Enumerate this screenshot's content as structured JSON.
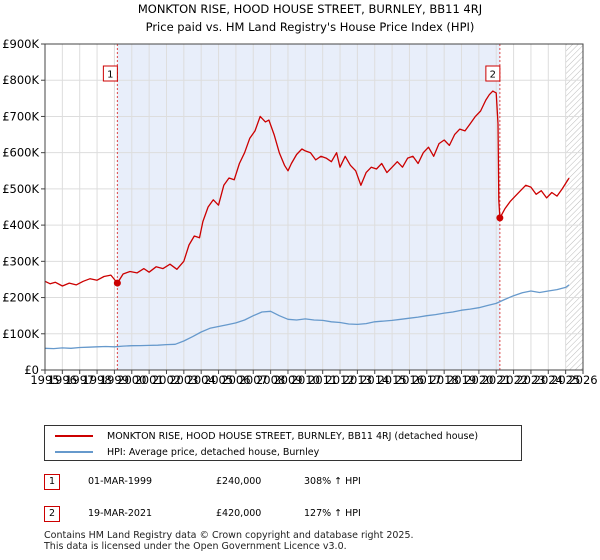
{
  "chart_data": {
    "type": "line",
    "title": "MONKTON RISE, HOOD HOUSE STREET, BURNLEY, BB11 4RJ",
    "subtitle": "Price paid vs. HM Land Registry's House Price Index (HPI)",
    "xlim": [
      1995,
      2026
    ],
    "ylim": [
      0,
      900000
    ],
    "x_ticks": [
      "1995",
      "1996",
      "1997",
      "1998",
      "1999",
      "2000",
      "2001",
      "2002",
      "2003",
      "2004",
      "2005",
      "2006",
      "2007",
      "2008",
      "2009",
      "2010",
      "2011",
      "2012",
      "2013",
      "2014",
      "2015",
      "2016",
      "2017",
      "2018",
      "2019",
      "2020",
      "2021",
      "2022",
      "2023",
      "2024",
      "2025",
      "2026"
    ],
    "y_ticks": [
      {
        "value": 0,
        "label": "£0"
      },
      {
        "value": 100000,
        "label": "£100K"
      },
      {
        "value": 200000,
        "label": "£200K"
      },
      {
        "value": 300000,
        "label": "£300K"
      },
      {
        "value": 400000,
        "label": "£400K"
      },
      {
        "value": 500000,
        "label": "£500K"
      },
      {
        "value": 600000,
        "label": "£600K"
      },
      {
        "value": 700000,
        "label": "£700K"
      },
      {
        "value": 800000,
        "label": "£800K"
      },
      {
        "value": 900000,
        "label": "£900K"
      }
    ],
    "shaded_span": [
      1999.17,
      2021.21
    ],
    "forecast_from": 2025.0,
    "series": [
      {
        "name": "MONKTON RISE, HOOD HOUSE STREET, BURNLEY, BB11 4RJ (detached house)",
        "color": "#cc0000",
        "points": [
          [
            1995.0,
            245000
          ],
          [
            1995.3,
            238000
          ],
          [
            1995.6,
            242000
          ],
          [
            1996.0,
            232000
          ],
          [
            1996.4,
            240000
          ],
          [
            1996.8,
            235000
          ],
          [
            1997.2,
            245000
          ],
          [
            1997.6,
            252000
          ],
          [
            1998.0,
            248000
          ],
          [
            1998.4,
            258000
          ],
          [
            1998.8,
            262000
          ],
          [
            1999.17,
            240000
          ],
          [
            1999.5,
            265000
          ],
          [
            1999.9,
            272000
          ],
          [
            2000.3,
            268000
          ],
          [
            2000.7,
            280000
          ],
          [
            2001.0,
            270000
          ],
          [
            2001.4,
            285000
          ],
          [
            2001.8,
            280000
          ],
          [
            2002.2,
            292000
          ],
          [
            2002.6,
            278000
          ],
          [
            2003.0,
            300000
          ],
          [
            2003.3,
            345000
          ],
          [
            2003.6,
            370000
          ],
          [
            2003.9,
            365000
          ],
          [
            2004.1,
            410000
          ],
          [
            2004.4,
            450000
          ],
          [
            2004.7,
            470000
          ],
          [
            2005.0,
            455000
          ],
          [
            2005.3,
            510000
          ],
          [
            2005.6,
            530000
          ],
          [
            2005.9,
            525000
          ],
          [
            2006.2,
            570000
          ],
          [
            2006.5,
            600000
          ],
          [
            2006.8,
            640000
          ],
          [
            2007.1,
            660000
          ],
          [
            2007.4,
            700000
          ],
          [
            2007.7,
            685000
          ],
          [
            2007.9,
            690000
          ],
          [
            2008.2,
            650000
          ],
          [
            2008.5,
            600000
          ],
          [
            2008.8,
            565000
          ],
          [
            2009.0,
            550000
          ],
          [
            2009.2,
            570000
          ],
          [
            2009.5,
            595000
          ],
          [
            2009.8,
            610000
          ],
          [
            2010.0,
            605000
          ],
          [
            2010.3,
            600000
          ],
          [
            2010.6,
            580000
          ],
          [
            2010.9,
            590000
          ],
          [
            2011.2,
            585000
          ],
          [
            2011.5,
            575000
          ],
          [
            2011.8,
            600000
          ],
          [
            2012.0,
            560000
          ],
          [
            2012.3,
            590000
          ],
          [
            2012.6,
            565000
          ],
          [
            2012.9,
            550000
          ],
          [
            2013.2,
            510000
          ],
          [
            2013.5,
            545000
          ],
          [
            2013.8,
            560000
          ],
          [
            2014.1,
            555000
          ],
          [
            2014.4,
            570000
          ],
          [
            2014.7,
            545000
          ],
          [
            2015.0,
            560000
          ],
          [
            2015.3,
            575000
          ],
          [
            2015.6,
            560000
          ],
          [
            2015.9,
            585000
          ],
          [
            2016.2,
            590000
          ],
          [
            2016.5,
            570000
          ],
          [
            2016.8,
            600000
          ],
          [
            2017.1,
            615000
          ],
          [
            2017.4,
            590000
          ],
          [
            2017.7,
            625000
          ],
          [
            2018.0,
            635000
          ],
          [
            2018.3,
            620000
          ],
          [
            2018.6,
            650000
          ],
          [
            2018.9,
            665000
          ],
          [
            2019.2,
            660000
          ],
          [
            2019.5,
            680000
          ],
          [
            2019.8,
            700000
          ],
          [
            2020.1,
            715000
          ],
          [
            2020.4,
            745000
          ],
          [
            2020.6,
            760000
          ],
          [
            2020.8,
            770000
          ],
          [
            2021.0,
            765000
          ],
          [
            2021.1,
            680000
          ],
          [
            2021.15,
            470000
          ],
          [
            2021.21,
            420000
          ],
          [
            2021.5,
            445000
          ],
          [
            2021.8,
            465000
          ],
          [
            2022.1,
            480000
          ],
          [
            2022.4,
            495000
          ],
          [
            2022.7,
            510000
          ],
          [
            2023.0,
            505000
          ],
          [
            2023.3,
            485000
          ],
          [
            2023.6,
            495000
          ],
          [
            2023.9,
            475000
          ],
          [
            2024.2,
            490000
          ],
          [
            2024.5,
            480000
          ],
          [
            2024.8,
            500000
          ],
          [
            2025.0,
            515000
          ],
          [
            2025.2,
            530000
          ]
        ]
      },
      {
        "name": "HPI: Average price, detached house, Burnley",
        "color": "#6699cc",
        "points": [
          [
            1995.0,
            60000
          ],
          [
            1995.5,
            59000
          ],
          [
            1996.0,
            61000
          ],
          [
            1996.5,
            60000
          ],
          [
            1997.0,
            62000
          ],
          [
            1997.5,
            63000
          ],
          [
            1998.0,
            64000
          ],
          [
            1998.5,
            65000
          ],
          [
            1999.0,
            64000
          ],
          [
            1999.5,
            66000
          ],
          [
            2000.0,
            67000
          ],
          [
            2000.5,
            67500
          ],
          [
            2001.0,
            68000
          ],
          [
            2001.5,
            68500
          ],
          [
            2002.0,
            70000
          ],
          [
            2002.5,
            71000
          ],
          [
            2003.0,
            80000
          ],
          [
            2003.5,
            92000
          ],
          [
            2004.0,
            105000
          ],
          [
            2004.5,
            115000
          ],
          [
            2005.0,
            120000
          ],
          [
            2005.5,
            125000
          ],
          [
            2006.0,
            130000
          ],
          [
            2006.5,
            138000
          ],
          [
            2007.0,
            150000
          ],
          [
            2007.5,
            160000
          ],
          [
            2008.0,
            162000
          ],
          [
            2008.5,
            150000
          ],
          [
            2009.0,
            140000
          ],
          [
            2009.5,
            138000
          ],
          [
            2010.0,
            141000
          ],
          [
            2010.5,
            138000
          ],
          [
            2011.0,
            137000
          ],
          [
            2011.5,
            133000
          ],
          [
            2012.0,
            131000
          ],
          [
            2012.5,
            127000
          ],
          [
            2013.0,
            126000
          ],
          [
            2013.5,
            128000
          ],
          [
            2014.0,
            133000
          ],
          [
            2014.5,
            135000
          ],
          [
            2015.0,
            137000
          ],
          [
            2015.5,
            140000
          ],
          [
            2016.0,
            143000
          ],
          [
            2016.5,
            146000
          ],
          [
            2017.0,
            150000
          ],
          [
            2017.5,
            153000
          ],
          [
            2018.0,
            157000
          ],
          [
            2018.5,
            160000
          ],
          [
            2019.0,
            165000
          ],
          [
            2019.5,
            168000
          ],
          [
            2020.0,
            172000
          ],
          [
            2020.5,
            178000
          ],
          [
            2021.0,
            184000
          ],
          [
            2021.5,
            195000
          ],
          [
            2022.0,
            205000
          ],
          [
            2022.5,
            213000
          ],
          [
            2023.0,
            218000
          ],
          [
            2023.5,
            214000
          ],
          [
            2024.0,
            218000
          ],
          [
            2024.5,
            222000
          ],
          [
            2025.0,
            228000
          ],
          [
            2025.2,
            235000
          ]
        ]
      }
    ],
    "markers": [
      {
        "label": "1",
        "x": 1999.17,
        "y": 240000
      },
      {
        "label": "2",
        "x": 2021.21,
        "y": 420000
      }
    ]
  },
  "legend": {
    "property_label": "MONKTON RISE, HOOD HOUSE STREET, BURNLEY, BB11 4RJ (detached house)",
    "hpi_label": "HPI: Average price, detached house, Burnley"
  },
  "transactions": [
    {
      "num": "1",
      "date": "01-MAR-1999",
      "price": "£240,000",
      "hpi": "308% ↑ HPI"
    },
    {
      "num": "2",
      "date": "19-MAR-2021",
      "price": "£420,000",
      "hpi": "127% ↑ HPI"
    }
  ],
  "footer": {
    "line1": "Contains HM Land Registry data © Crown copyright and database right 2025.",
    "line2": "This data is licensed under the Open Government Licence v3.0."
  }
}
